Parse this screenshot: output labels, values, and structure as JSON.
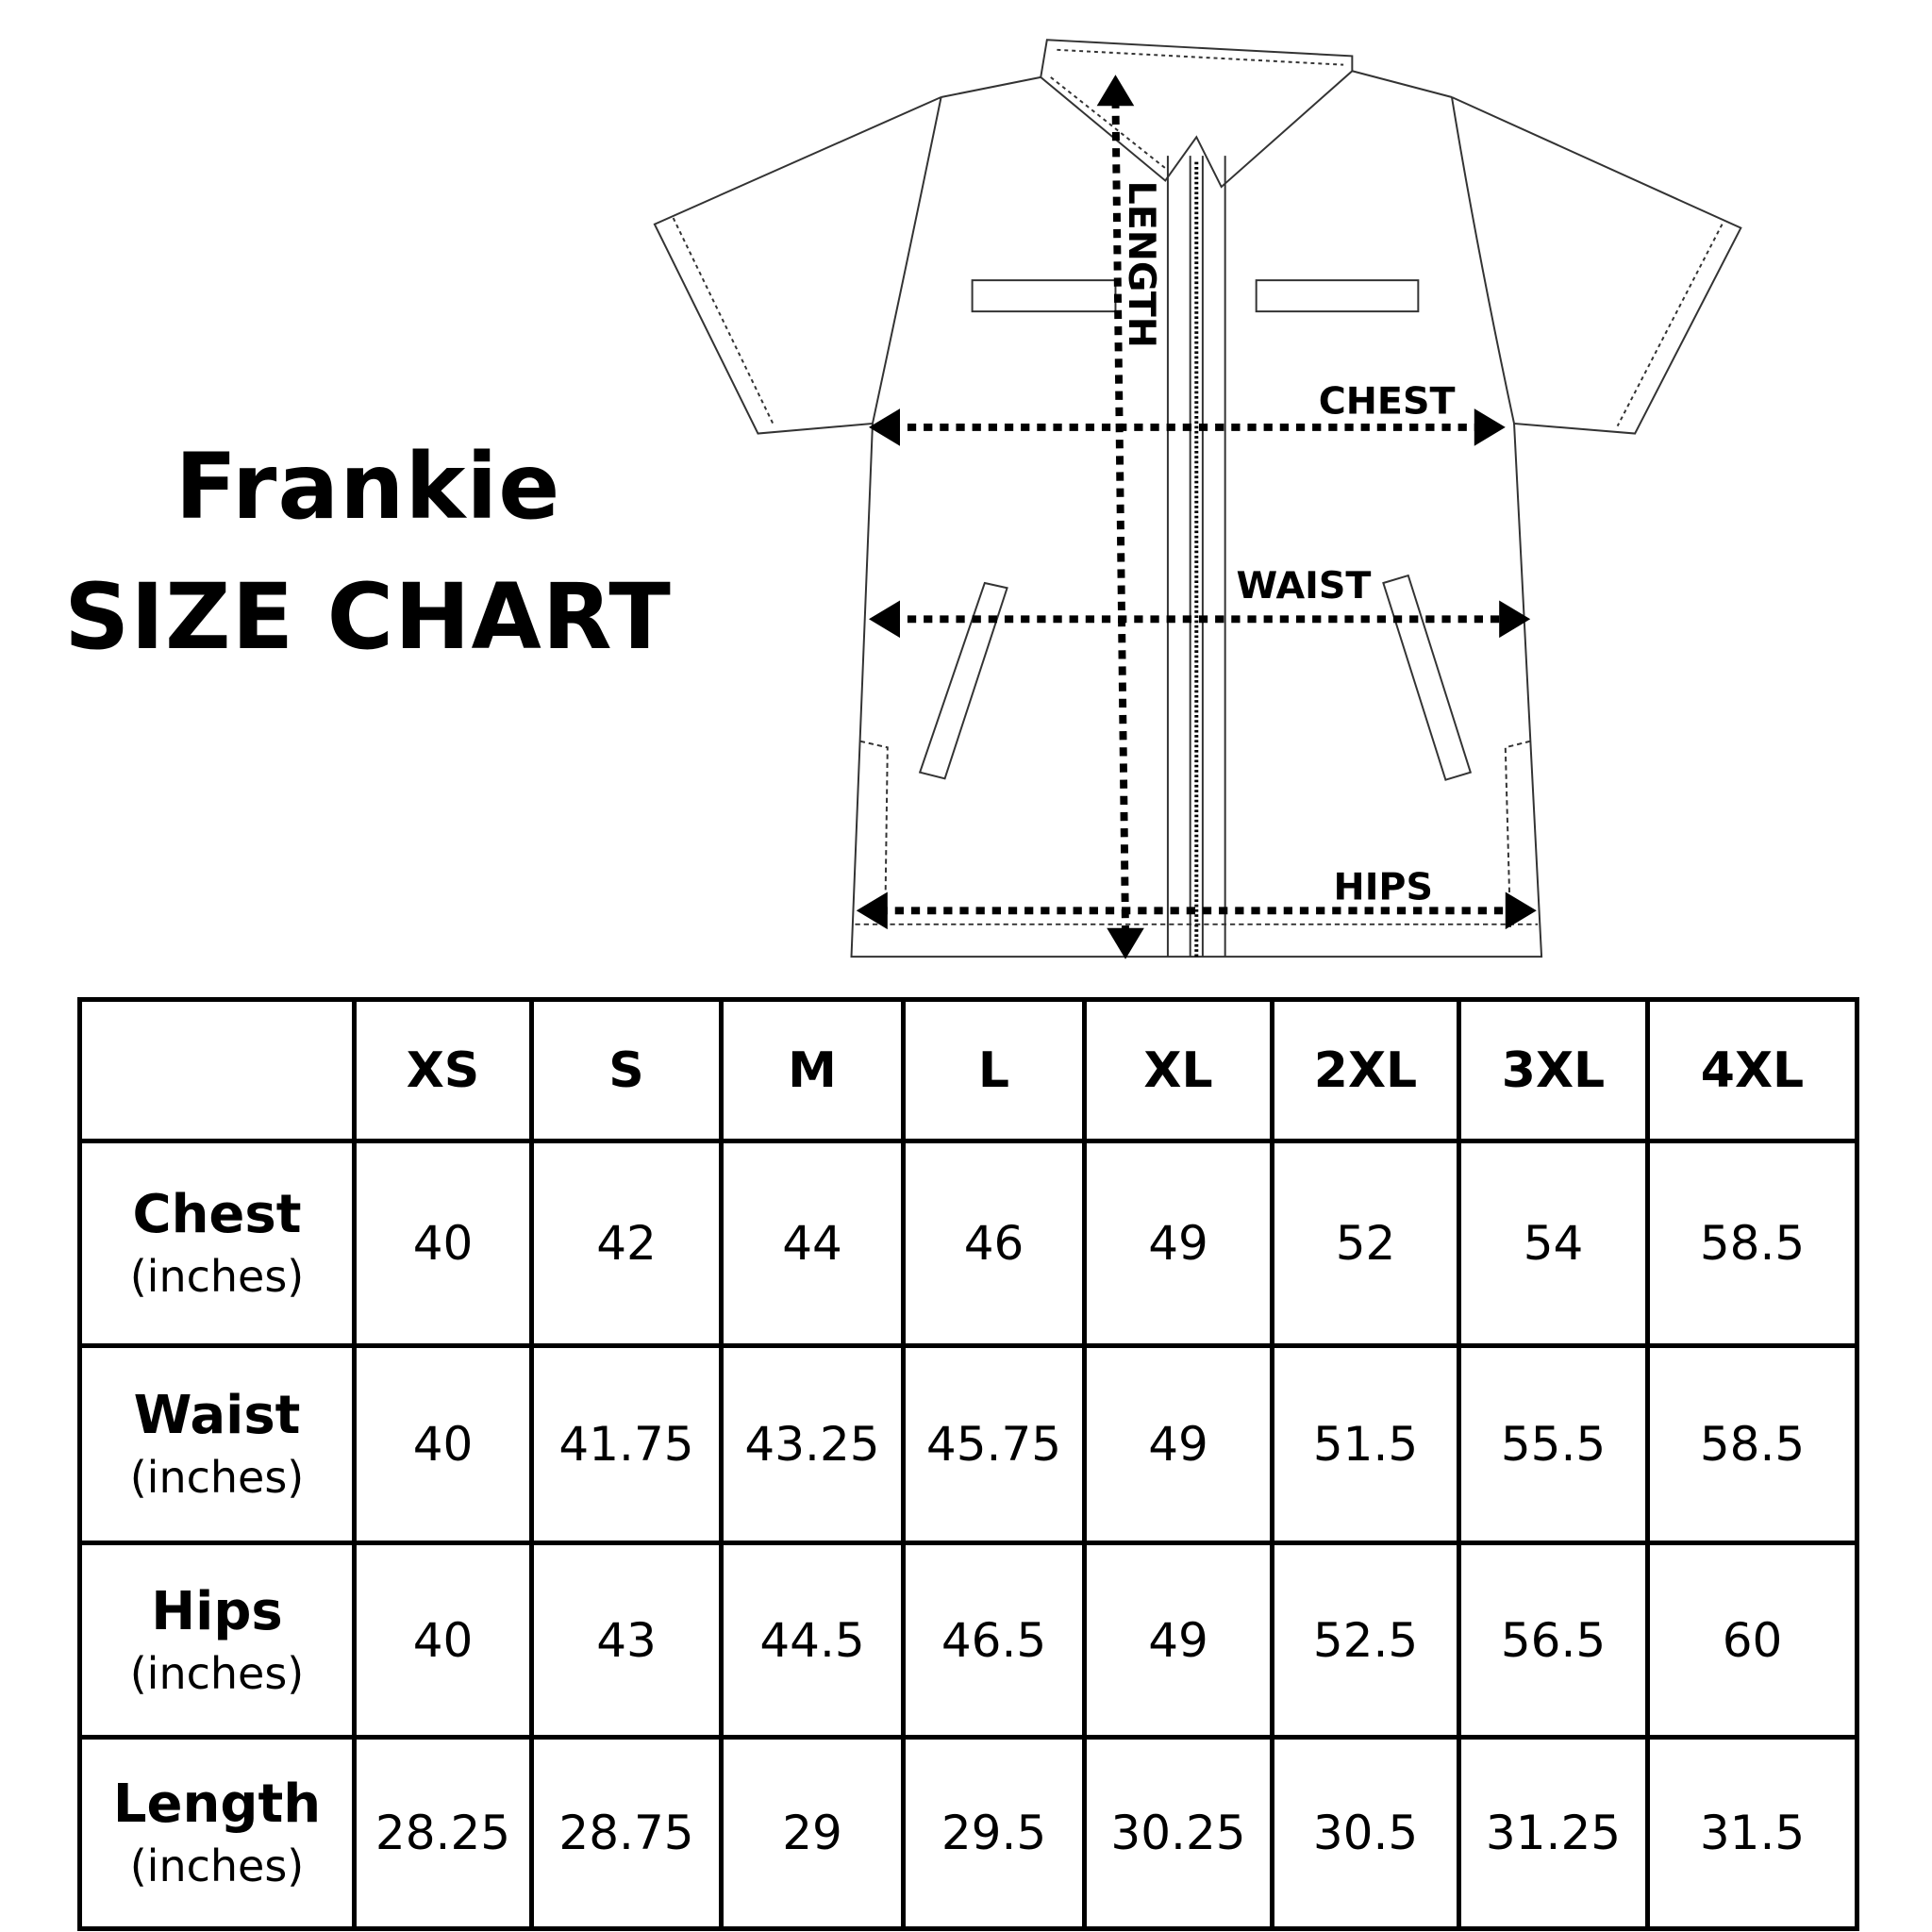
{
  "title": {
    "line1": "Frankie",
    "line2": "SIZE CHART"
  },
  "diagram": {
    "labels": {
      "length": "LENGTH",
      "chest": "CHEST",
      "waist": "WAIST",
      "hips": "HIPS"
    }
  },
  "table": {
    "sizes": [
      "XS",
      "S",
      "M",
      "L",
      "XL",
      "2XL",
      "3XL",
      "4XL"
    ],
    "rows": [
      {
        "label": "Chest",
        "unit": "(inches)",
        "values": [
          "40",
          "42",
          "44",
          "46",
          "49",
          "52",
          "54",
          "58.5"
        ]
      },
      {
        "label": "Waist",
        "unit": "(inches)",
        "values": [
          "40",
          "41.75",
          "43.25",
          "45.75",
          "49",
          "51.5",
          "55.5",
          "58.5"
        ]
      },
      {
        "label": "Hips",
        "unit": "(inches)",
        "values": [
          "40",
          "43",
          "44.5",
          "46.5",
          "49",
          "52.5",
          "56.5",
          "60"
        ]
      },
      {
        "label": "Length",
        "unit": "(inches)",
        "values": [
          "28.25",
          "28.75",
          "29",
          "29.5",
          "30.25",
          "30.5",
          "31.25",
          "31.5"
        ]
      }
    ]
  }
}
